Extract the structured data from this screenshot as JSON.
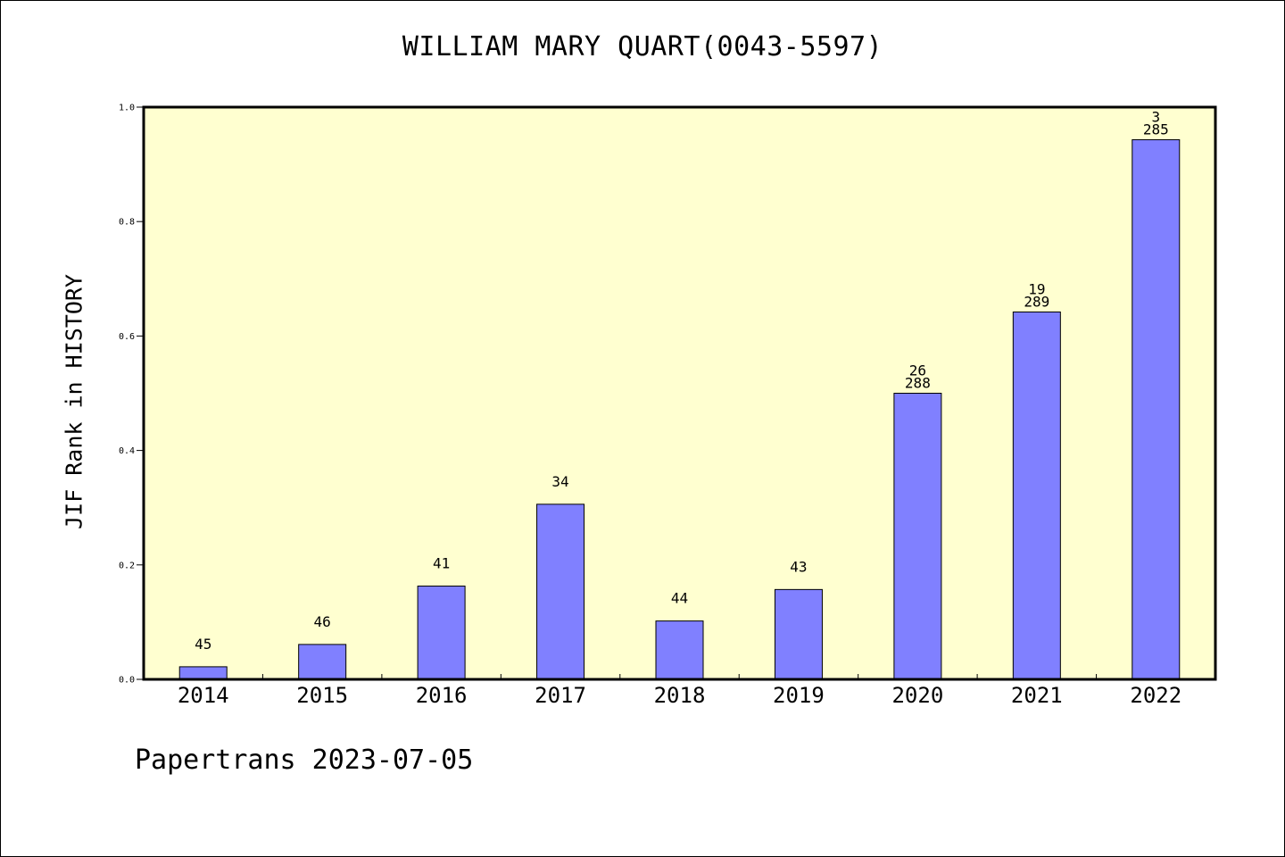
{
  "chart_data": {
    "type": "bar",
    "title": "WILLIAM MARY QUART(0043-5597)",
    "xlabel": "",
    "ylabel": "JIF Rank in HISTORY",
    "ylim": [
      0,
      1.0
    ],
    "yticks": [
      "0.0",
      "0.2",
      "0.4",
      "0.6",
      "0.8",
      "1.0"
    ],
    "grid": false,
    "colors": {
      "bar": "#8080ff",
      "plot_background": "#ffffd0",
      "frame": "#000000"
    },
    "categories": [
      "2014",
      "2015",
      "2016",
      "2017",
      "2018",
      "2019",
      "2020",
      "2021",
      "2022"
    ],
    "values": [
      0.022,
      0.061,
      0.163,
      0.306,
      0.102,
      0.157,
      0.5,
      0.642,
      0.943
    ],
    "labels": [
      [
        "45"
      ],
      [
        "46"
      ],
      [
        "41"
      ],
      [
        "34"
      ],
      [
        "44"
      ],
      [
        "43"
      ],
      [
        "26",
        "288"
      ],
      [
        "19",
        "289"
      ],
      [
        "3",
        "285"
      ]
    ]
  },
  "footer": "Papertrans 2023-07-05"
}
